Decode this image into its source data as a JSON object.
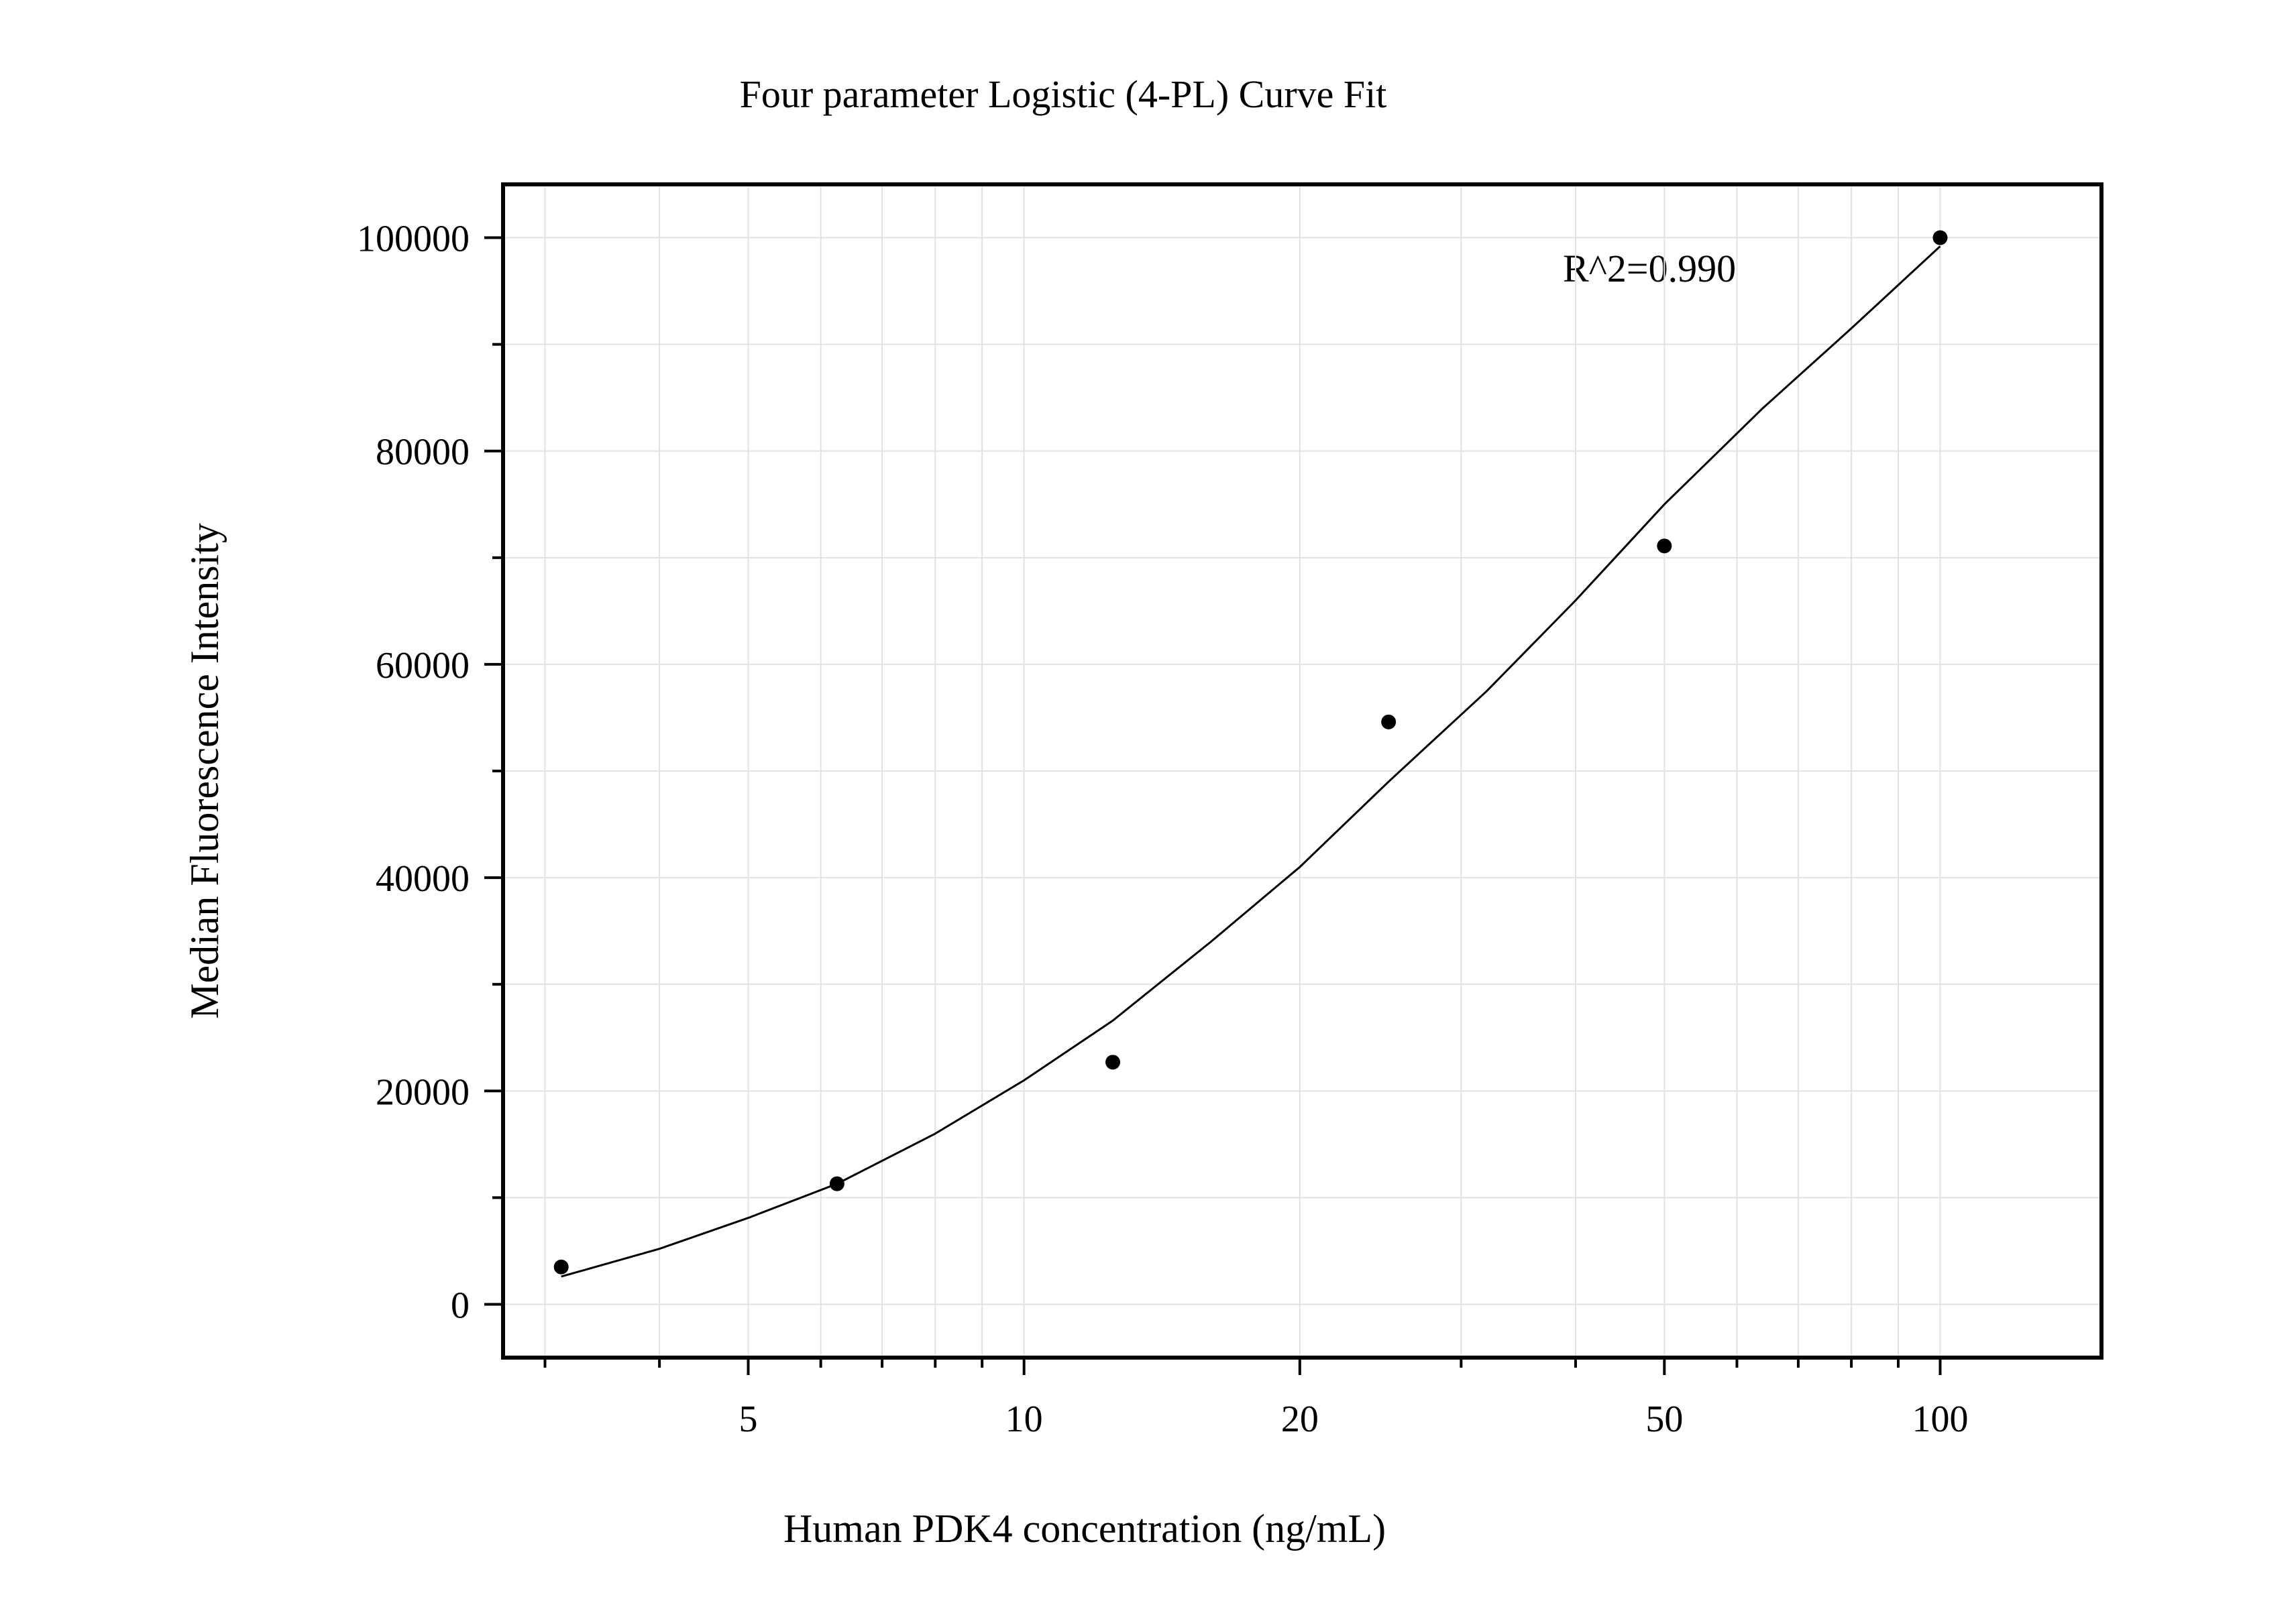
{
  "chart_data": {
    "type": "scatter",
    "title": "Four parameter Logistic (4-PL) Curve Fit",
    "xlabel": "Human PDK4 concentration (ng/mL)",
    "ylabel": "Median Fluorescence Intensity",
    "x_scale": "log",
    "xlim": [
      2.7,
      150
    ],
    "ylim": [
      -5000,
      105000
    ],
    "x_ticks": [
      5,
      10,
      20,
      50,
      100
    ],
    "x_tick_labels": [
      "5",
      "10",
      "20",
      "50",
      "100"
    ],
    "y_ticks": [
      0,
      20000,
      40000,
      60000,
      80000,
      100000
    ],
    "y_tick_labels": [
      "0",
      "20000",
      "40000",
      "60000",
      "80000",
      "100000"
    ],
    "grid": true,
    "series": [
      {
        "type": "scatter",
        "x": [
          3.125,
          6.25,
          12.5,
          25,
          50,
          100
        ],
        "y": [
          3500,
          11300,
          22700,
          54600,
          71100,
          100000
        ],
        "color": "#000000"
      },
      {
        "type": "line",
        "x": [
          3.125,
          4,
          5,
          6.25,
          8,
          10,
          12.5,
          16,
          20,
          25,
          32,
          40,
          50,
          64,
          80,
          100
        ],
        "y": [
          2600,
          5200,
          8100,
          11300,
          16000,
          21000,
          26600,
          34000,
          41000,
          49000,
          57500,
          66000,
          75000,
          84000,
          91500,
          99200
        ],
        "color": "#000000"
      }
    ],
    "annotations": [
      {
        "text": "R^2=0.990"
      }
    ]
  }
}
